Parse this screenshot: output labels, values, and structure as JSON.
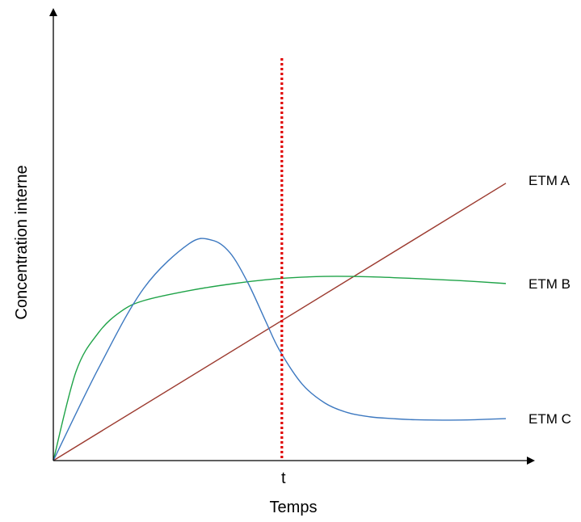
{
  "chart_data": {
    "type": "line",
    "title": "",
    "xlabel": "Temps",
    "ylabel": "Concentration interne",
    "xlim": [
      0,
      10
    ],
    "ylim": [
      0,
      10
    ],
    "grid": false,
    "annotations": [
      {
        "text": "t",
        "x": 5.05,
        "style": "vertical dotted line",
        "color": "#e00000"
      }
    ],
    "series": [
      {
        "name": "ETM A",
        "color": "#9c3a2f",
        "x": [
          0,
          10
        ],
        "y": [
          0,
          7.8
        ]
      },
      {
        "name": "ETM B",
        "color": "#1fa348",
        "x": [
          0,
          0.5,
          1,
          1.5,
          2,
          3,
          4,
          5,
          6,
          7,
          8,
          9,
          10
        ],
        "y": [
          0,
          2.5,
          3.6,
          4.2,
          4.5,
          4.78,
          4.98,
          5.12,
          5.18,
          5.17,
          5.12,
          5.06,
          4.98
        ]
      },
      {
        "name": "ETM C",
        "color": "#3c78c0",
        "x": [
          0,
          1,
          2,
          3,
          3.5,
          3.9,
          4.3,
          4.7,
          5,
          5.5,
          6,
          6.5,
          7,
          7.5,
          8,
          9,
          10
        ],
        "y": [
          0,
          2.6,
          4.85,
          6.1,
          6.2,
          5.85,
          5.0,
          3.9,
          3.1,
          2.15,
          1.62,
          1.35,
          1.23,
          1.18,
          1.15,
          1.14,
          1.18
        ]
      }
    ]
  }
}
